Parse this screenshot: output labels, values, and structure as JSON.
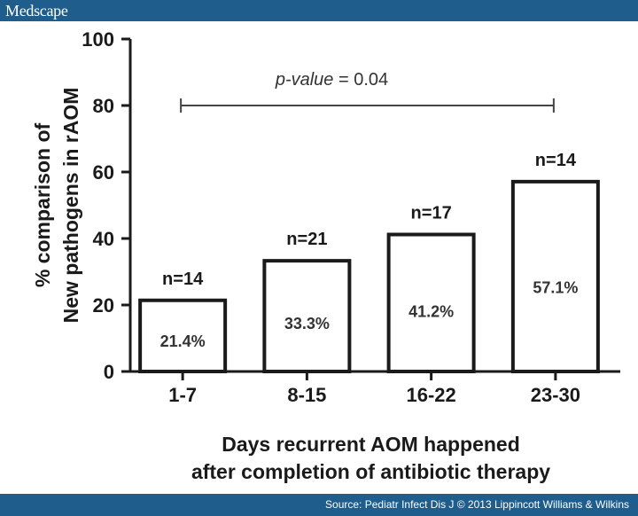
{
  "header": {
    "logo": "Medscape"
  },
  "footer": {
    "source": "Source: Pediatr Infect Dis J © 2013 Lippincott Williams & Wilkins"
  },
  "colors": {
    "brand": "#1e5d8c",
    "bar_fill": "#ffffff",
    "bar_stroke": "#1a1a1a"
  },
  "chart_data": {
    "type": "bar",
    "categories": [
      "1-7",
      "8-15",
      "16-22",
      "23-30"
    ],
    "values": [
      21.4,
      33.3,
      41.2,
      57.1
    ],
    "value_labels": [
      "21.4%",
      "33.3%",
      "41.2%",
      "57.1%"
    ],
    "n_labels": [
      "n=14",
      "n=21",
      "n=17",
      "n=14"
    ],
    "ylabel_lines": [
      "% comparison of",
      "New pathogens in rAOM"
    ],
    "xlabel_lines": [
      "Days recurrent AOM happened",
      "after completion of antibiotic therapy"
    ],
    "ylim": [
      0,
      100
    ],
    "yticks": [
      0,
      20,
      40,
      60,
      80,
      100
    ],
    "annotation": {
      "italic": "p-value",
      "rest": " = 0.04",
      "from_category": "1-7",
      "to_category": "23-30",
      "level": 80
    },
    "grid": false,
    "legend": "none"
  }
}
